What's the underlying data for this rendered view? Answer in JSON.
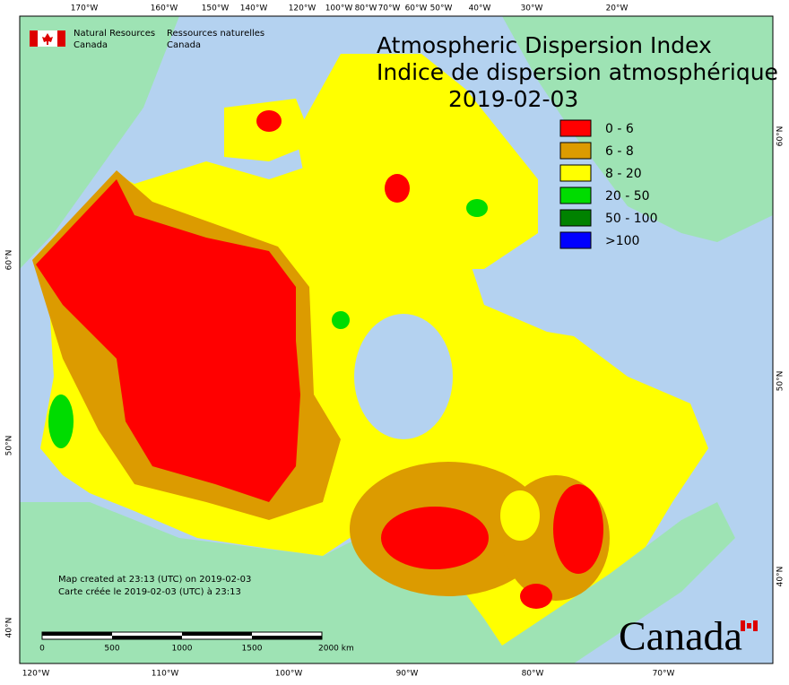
{
  "header": {
    "agency_en": [
      "Natural Resources",
      "Canada"
    ],
    "agency_fr": [
      "Ressources naturelles",
      "Canada"
    ]
  },
  "title": {
    "en": "Atmospheric Dispersion Index",
    "fr": "Indice de dispersion atmosphérique",
    "date": "2019-02-03"
  },
  "legend": [
    {
      "label": "0 - 6",
      "color": "#ff0000"
    },
    {
      "label": "6 - 8",
      "color": "#dc9b00"
    },
    {
      "label": "8 - 20",
      "color": "#ffff00"
    },
    {
      "label": "20 - 50",
      "color": "#00dc00"
    },
    {
      "label": "50 - 100",
      "color": "#008200"
    },
    {
      "label": ">100",
      "color": "#0000ff"
    }
  ],
  "top_axis": [
    "170°W",
    "160°W",
    "150°W",
    "140°W",
    "120°W",
    "100°W",
    "80°W",
    "70°W",
    "60°W",
    "50°W",
    "40°W",
    "30°W",
    "20°W"
  ],
  "bottom_axis": [
    "120°W",
    "110°W",
    "100°W",
    "90°W",
    "80°W",
    "70°W"
  ],
  "left_axis": [
    "60°N",
    "50°N",
    "40°N"
  ],
  "right_axis": [
    "60°N",
    "50°N",
    "40°N"
  ],
  "footer": [
    "Map created at 23:13 (UTC) on 2019-02-03",
    "Carte créée le 2019-02-03 (UTC) à 23:13"
  ],
  "scale_bar": [
    "0",
    "500",
    "1000",
    "1500",
    "2000 km"
  ],
  "wordmark": "Canada"
}
